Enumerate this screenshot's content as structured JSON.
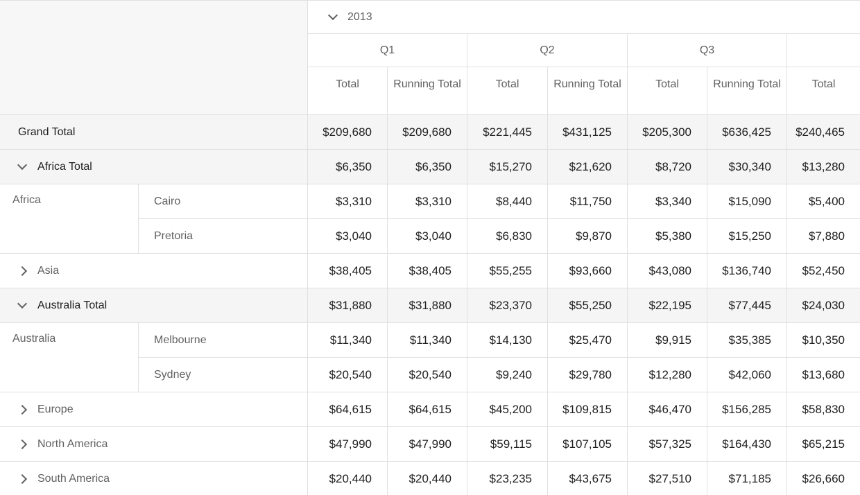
{
  "header": {
    "year": "2013",
    "quarters": [
      "Q1",
      "Q2",
      "Q3",
      ""
    ],
    "measures": [
      "Total",
      "Running Total",
      "Total",
      "Running Total",
      "Total",
      "Running Total",
      "Total"
    ]
  },
  "rows": {
    "grand": {
      "label": "Grand Total",
      "values": [
        "$209,680",
        "$209,680",
        "$221,445",
        "$431,125",
        "$205,300",
        "$636,425",
        "$240,465"
      ]
    },
    "africa_total": {
      "label": "Africa Total",
      "values": [
        "$6,350",
        "$6,350",
        "$15,270",
        "$21,620",
        "$8,720",
        "$30,340",
        "$13,280"
      ]
    },
    "africa": {
      "group": "Africa",
      "cairo": {
        "label": "Cairo",
        "values": [
          "$3,310",
          "$3,310",
          "$8,440",
          "$11,750",
          "$3,340",
          "$15,090",
          "$5,400"
        ]
      },
      "pretoria": {
        "label": "Pretoria",
        "values": [
          "$3,040",
          "$3,040",
          "$6,830",
          "$9,870",
          "$5,380",
          "$15,250",
          "$7,880"
        ]
      }
    },
    "asia": {
      "label": "Asia",
      "values": [
        "$38,405",
        "$38,405",
        "$55,255",
        "$93,660",
        "$43,080",
        "$136,740",
        "$52,450"
      ]
    },
    "australia_total": {
      "label": "Australia Total",
      "values": [
        "$31,880",
        "$31,880",
        "$23,370",
        "$55,250",
        "$22,195",
        "$77,445",
        "$24,030"
      ]
    },
    "australia": {
      "group": "Australia",
      "melbourne": {
        "label": "Melbourne",
        "values": [
          "$11,340",
          "$11,340",
          "$14,130",
          "$25,470",
          "$9,915",
          "$35,385",
          "$10,350"
        ]
      },
      "sydney": {
        "label": "Sydney",
        "values": [
          "$20,540",
          "$20,540",
          "$9,240",
          "$29,780",
          "$12,280",
          "$42,060",
          "$13,680"
        ]
      }
    },
    "europe": {
      "label": "Europe",
      "values": [
        "$64,615",
        "$64,615",
        "$45,200",
        "$109,815",
        "$46,470",
        "$156,285",
        "$58,830"
      ]
    },
    "north_america": {
      "label": "North America",
      "values": [
        "$47,990",
        "$47,990",
        "$59,115",
        "$107,105",
        "$57,325",
        "$164,430",
        "$65,215"
      ]
    },
    "south_america": {
      "label": "South America",
      "values": [
        "$20,440",
        "$20,440",
        "$23,235",
        "$43,675",
        "$27,510",
        "$71,185",
        "$26,660"
      ]
    }
  },
  "icons": {
    "expanded": "chevron-down-icon",
    "collapsed": "chevron-right-icon"
  },
  "colors": {
    "border": "#e0e0e0",
    "total_row_bg": "#f5f5f5",
    "header_text": "#616161",
    "cell_text": "#212121"
  }
}
